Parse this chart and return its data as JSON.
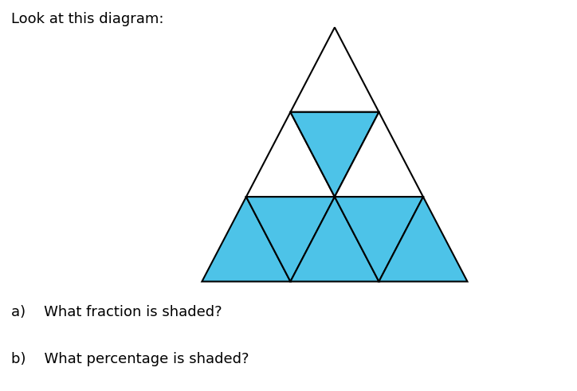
{
  "title": "Look at this diagram:",
  "question_a": "a)    What fraction is shaded?",
  "question_b": "b)    What percentage is shaded?",
  "shaded_color": "#4DC3E8",
  "unshaded_color": "#FFFFFF",
  "border_color": "#000000",
  "background_color": "#FFFFFF",
  "line_width": 1.5,
  "title_fontsize": 13,
  "question_fontsize": 13,
  "apex": [
    0.58,
    0.93
  ],
  "bl": [
    0.35,
    0.28
  ],
  "br": [
    0.81,
    0.28
  ]
}
